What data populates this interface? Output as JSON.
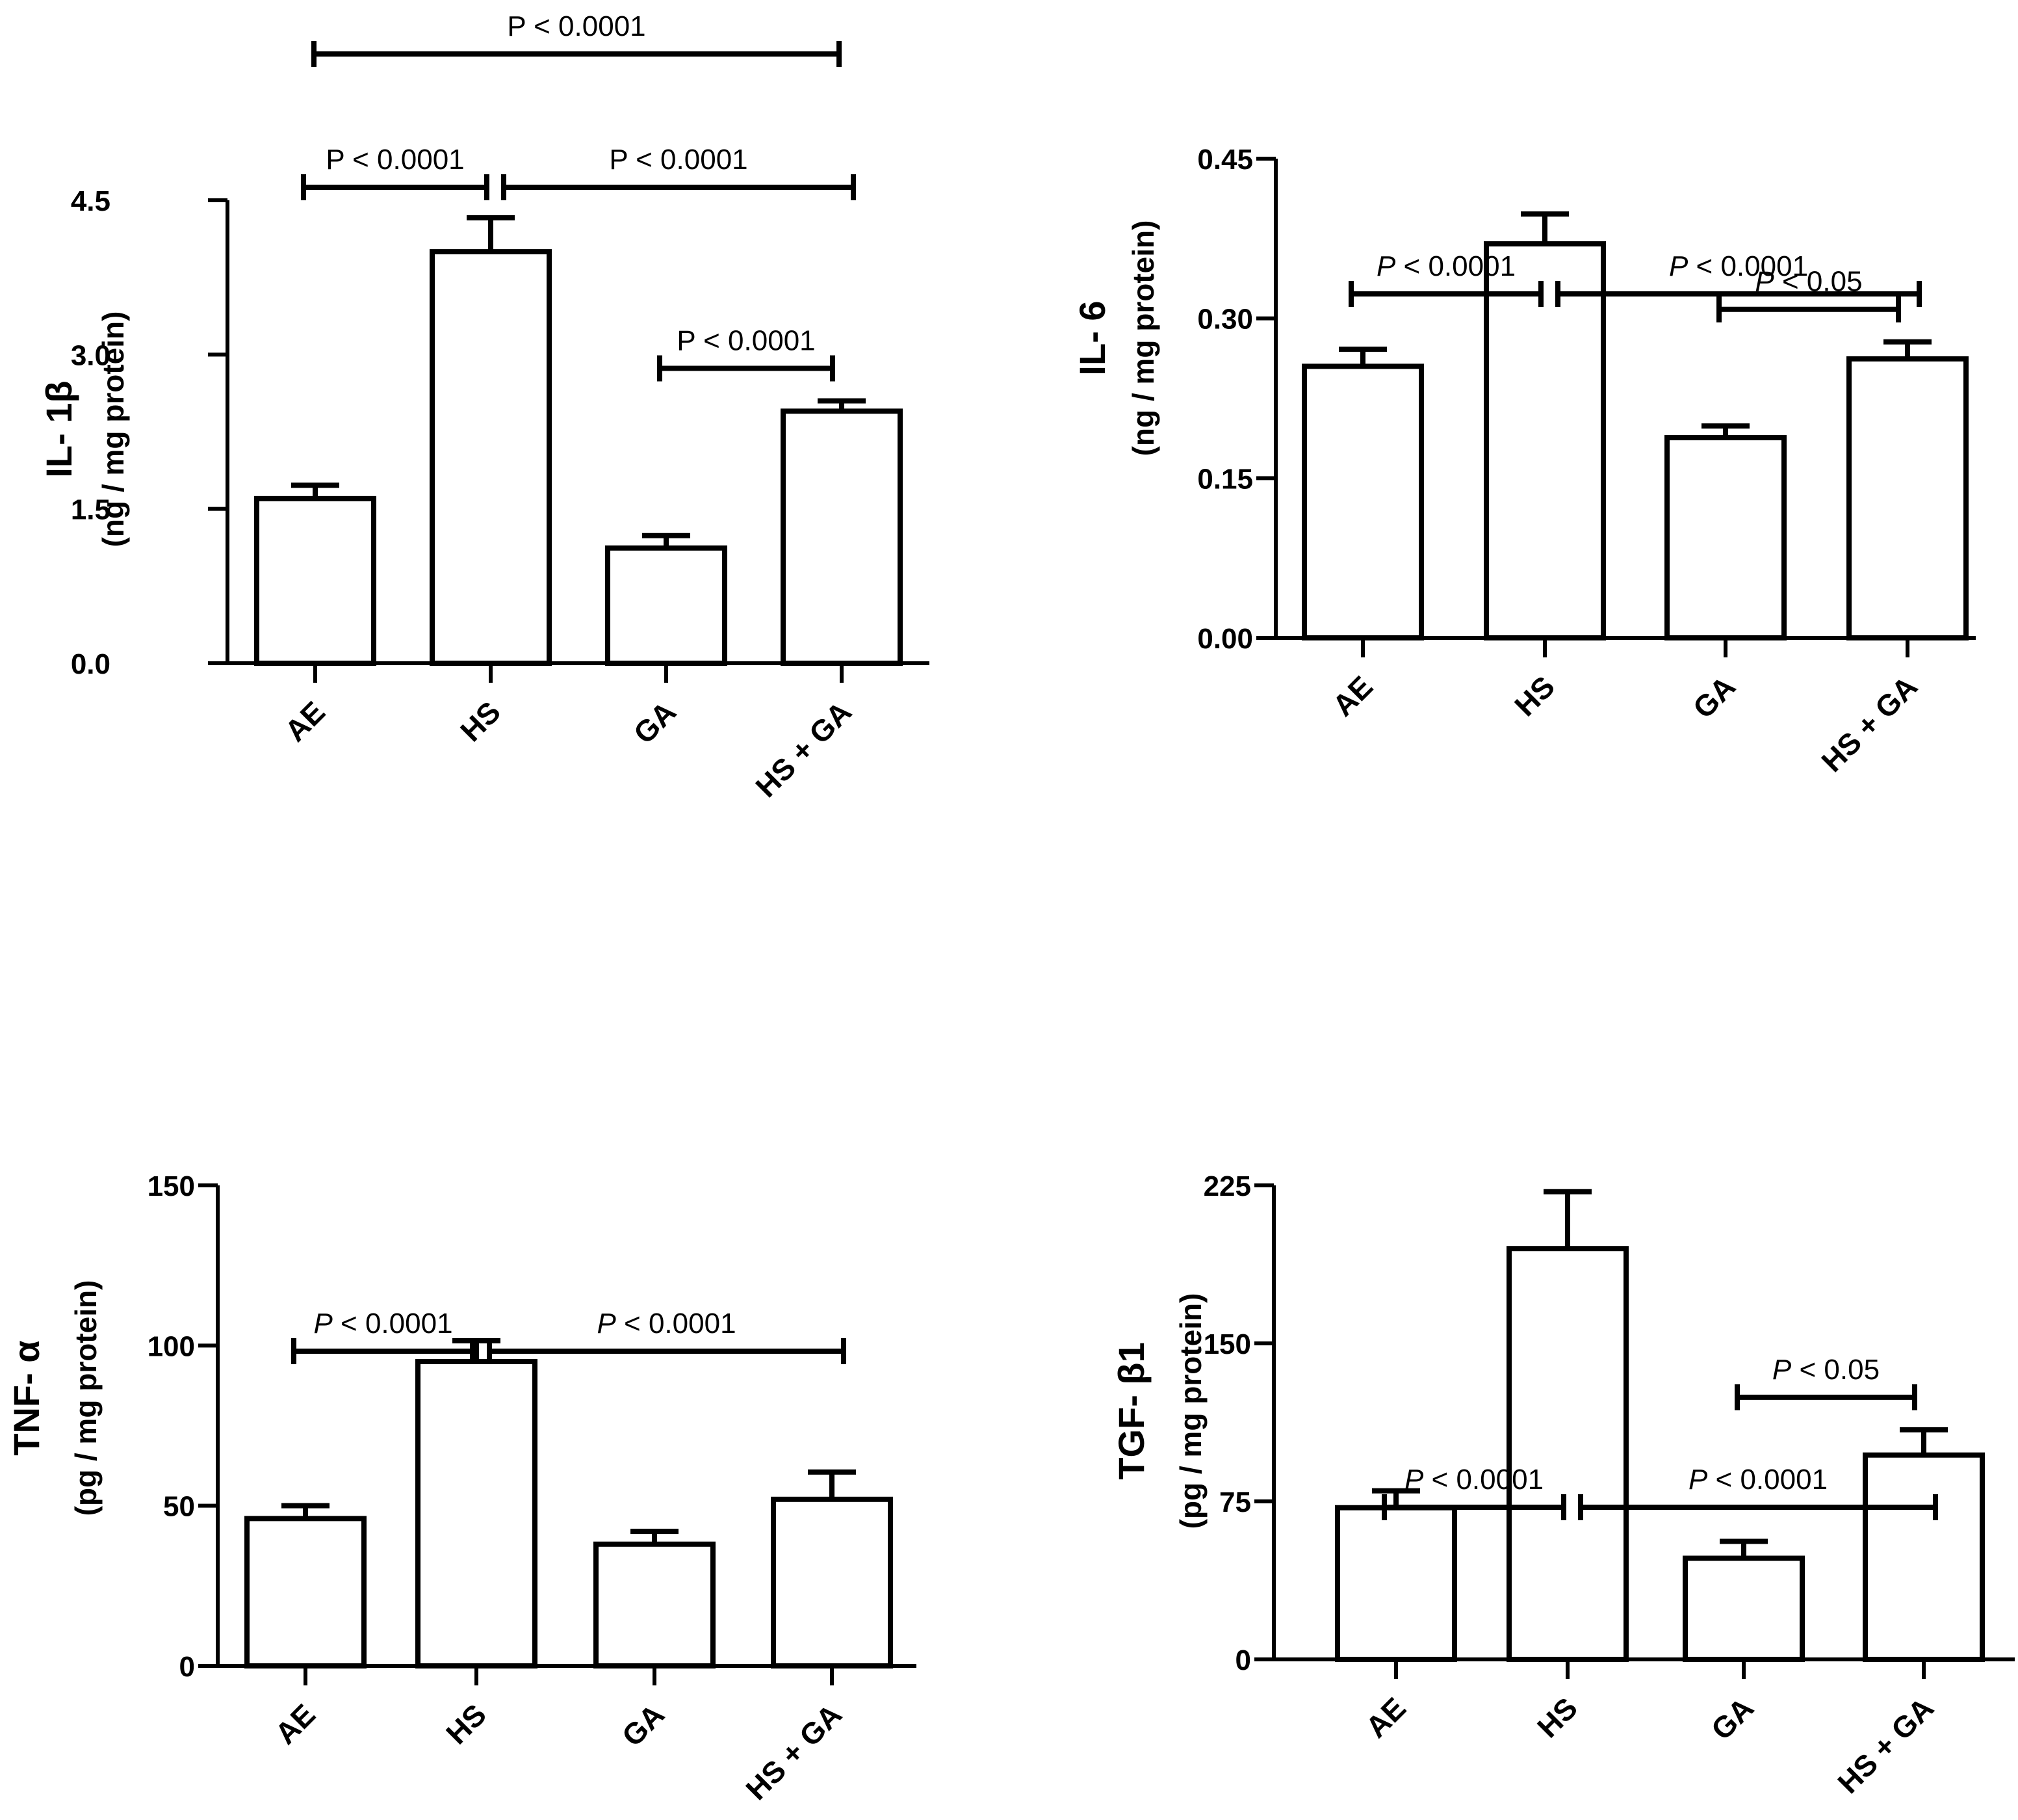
{
  "chart_data": [
    {
      "type": "bar",
      "title": "",
      "categories": [
        "AE",
        "HS",
        "GA",
        "HS + GA"
      ],
      "values": [
        1.6,
        4.0,
        1.12,
        2.45
      ],
      "errors": [
        0.13,
        0.33,
        0.12,
        0.1
      ],
      "ylabel_main": "IL- 1β",
      "ylabel_unit": "(ng / mg protein)",
      "xlabel": "",
      "ylim": [
        0,
        4.5
      ],
      "yticks": [
        "0.0",
        "1.5",
        "3.0",
        "4.5"
      ],
      "grid": false,
      "significance": [
        {
          "label": "P < 0.0001",
          "italic": false,
          "from": 0,
          "to": 1,
          "level": 1
        },
        {
          "label": "P < 0.0001",
          "italic": false,
          "from": 1,
          "to": 3,
          "level": 1
        },
        {
          "label": "P < 0.0001",
          "italic": false,
          "from": 0,
          "to": 3,
          "level": 2
        },
        {
          "label": "P < 0.0001",
          "italic": false,
          "from": 2,
          "to": 3,
          "level": 0
        }
      ]
    },
    {
      "type": "bar",
      "title": "",
      "categories": [
        "AE",
        "HS",
        "GA",
        "HS + GA"
      ],
      "values": [
        0.255,
        0.37,
        0.188,
        0.262
      ],
      "errors": [
        0.016,
        0.028,
        0.011,
        0.016
      ],
      "ylabel_main": "IL- 6",
      "ylabel_unit": "(ng / mg protein)",
      "xlabel": "",
      "ylim": [
        0,
        0.45
      ],
      "yticks": [
        "0.00",
        "0.15",
        "0.30",
        "0.45"
      ],
      "grid": false,
      "significance": [
        {
          "label": "P < 0.0001",
          "italic": true,
          "from": 0,
          "to": 1,
          "level": 1
        },
        {
          "label": "P < 0.0001",
          "italic": true,
          "from": 1,
          "to": 3,
          "level": 1
        },
        {
          "label": "P < 0.05",
          "italic": true,
          "from": 2,
          "to": 3,
          "level": 0
        }
      ]
    },
    {
      "type": "bar",
      "title": "",
      "categories": [
        "AE",
        "HS",
        "GA",
        "HS + GA"
      ],
      "values": [
        46,
        95,
        38,
        52
      ],
      "errors": [
        4,
        6.5,
        4,
        8.5
      ],
      "ylabel_main": "TNF- α",
      "ylabel_unit": "(pg / mg protein)",
      "xlabel": "",
      "ylim": [
        0,
        150
      ],
      "yticks": [
        "0",
        "50",
        "100",
        "150"
      ],
      "grid": false,
      "significance": [
        {
          "label": "P < 0.0001",
          "italic": true,
          "from": 0,
          "to": 1,
          "level": 1
        },
        {
          "label": "P < 0.0001",
          "italic": true,
          "from": 1,
          "to": 3,
          "level": 1
        }
      ]
    },
    {
      "type": "bar",
      "title": "",
      "categories": [
        "AE",
        "HS",
        "GA",
        "HS + GA"
      ],
      "values": [
        72,
        195,
        48,
        97
      ],
      "errors": [
        8,
        27,
        8,
        12
      ],
      "ylabel_main": "TGF- β1",
      "ylabel_unit": "(pg / mg protein)",
      "xlabel": "",
      "ylim": [
        0,
        225
      ],
      "yticks": [
        "0",
        "75",
        "150",
        "225"
      ],
      "grid": false,
      "significance": [
        {
          "label": "P < 0.0001",
          "italic": true,
          "from": 0,
          "to": 1,
          "level": 1
        },
        {
          "label": "P < 0.0001",
          "italic": true,
          "from": 1,
          "to": 3,
          "level": 1
        },
        {
          "label": "P < 0.05",
          "italic": true,
          "from": 2,
          "to": 3,
          "level": 0
        }
      ]
    }
  ]
}
